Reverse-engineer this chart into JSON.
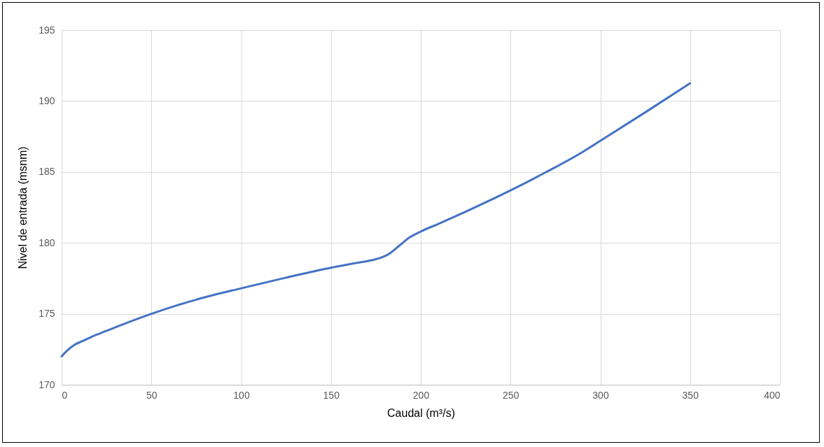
{
  "chart_data": {
    "type": "line",
    "xlabel": "Caudal  (m³/s)",
    "ylabel": "Nivel de entrada (msnm)",
    "x": [
      0,
      3,
      7,
      12,
      17,
      25,
      35,
      50,
      75,
      100,
      125,
      150,
      165,
      175,
      182,
      188,
      194,
      200,
      210,
      225,
      250,
      270,
      290,
      300,
      325,
      350
    ],
    "series": [
      {
        "color": "#4472c4",
        "values": [
          172.0,
          172.4,
          172.8,
          173.1,
          173.4,
          173.8,
          174.3,
          175.0,
          176.0,
          176.8,
          177.55,
          178.25,
          178.6,
          178.85,
          179.2,
          179.8,
          180.4,
          180.8,
          181.35,
          182.2,
          183.7,
          185.0,
          186.4,
          187.2,
          189.2,
          191.25
        ]
      }
    ],
    "xlim": [
      0,
      400
    ],
    "xticks": [
      0,
      50,
      100,
      150,
      200,
      250,
      300,
      350,
      400
    ],
    "ylim": [
      170,
      195
    ],
    "yticks": [
      170,
      175,
      180,
      185,
      190,
      195
    ],
    "grid": true,
    "marker": "none",
    "line_style": "solid"
  }
}
